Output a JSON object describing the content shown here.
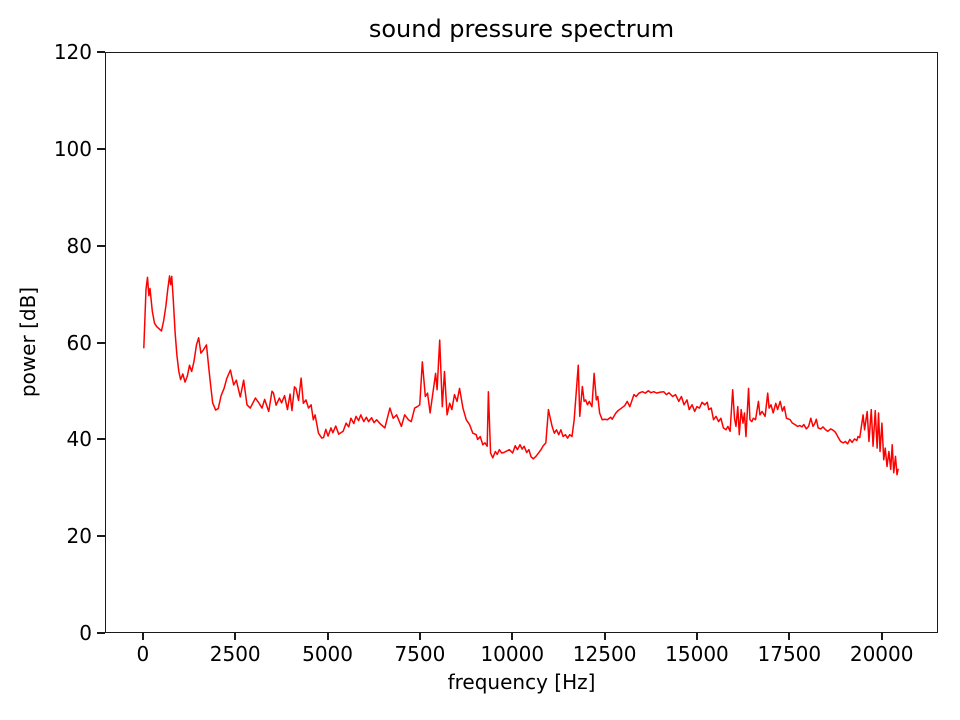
{
  "figure": {
    "background": "#ffffff",
    "text_color": "#000000",
    "spine_color": "#1a1a1a"
  },
  "chart_data": {
    "type": "line",
    "title": "sound pressure spectrum",
    "xlabel": "frequency [Hz]",
    "ylabel": "power [dB]",
    "xlim": [
      -1025,
      21525
    ],
    "ylim": [
      0,
      120
    ],
    "xticks": [
      0,
      2500,
      5000,
      7500,
      10000,
      12500,
      15000,
      17500,
      20000
    ],
    "yticks": [
      0,
      20,
      40,
      60,
      80,
      100,
      120
    ],
    "grid": false,
    "legend_position": "none",
    "series": [
      {
        "name": "sound-pressure-spectrum",
        "color": "#ff0000",
        "x": [
          0,
          60,
          100,
          140,
          170,
          230,
          290,
          350,
          420,
          480,
          540,
          600,
          650,
          700,
          730,
          760,
          800,
          850,
          900,
          950,
          1000,
          1060,
          1120,
          1180,
          1240,
          1300,
          1360,
          1430,
          1490,
          1550,
          1620,
          1700,
          1760,
          1810,
          1870,
          1950,
          2020,
          2100,
          2180,
          2250,
          2350,
          2440,
          2510,
          2620,
          2710,
          2800,
          2890,
          3030,
          3120,
          3210,
          3280,
          3390,
          3480,
          3520,
          3590,
          3680,
          3740,
          3820,
          3900,
          3970,
          4020,
          4090,
          4130,
          4200,
          4270,
          4330,
          4400,
          4470,
          4540,
          4600,
          4650,
          4740,
          4830,
          4880,
          4940,
          5000,
          5080,
          5130,
          5210,
          5290,
          5410,
          5490,
          5560,
          5620,
          5700,
          5760,
          5830,
          5890,
          5970,
          6040,
          6100,
          6180,
          6250,
          6320,
          6410,
          6540,
          6680,
          6770,
          6860,
          6990,
          7080,
          7180,
          7260,
          7350,
          7420,
          7490,
          7560,
          7640,
          7700,
          7770,
          7920,
          7960,
          8030,
          8100,
          8160,
          8230,
          8300,
          8360,
          8430,
          8500,
          8570,
          8660,
          8750,
          8840,
          8930,
          9020,
          9060,
          9130,
          9200,
          9260,
          9320,
          9350,
          9410,
          9470,
          9540,
          9590,
          9650,
          9710,
          9770,
          9850,
          9920,
          10010,
          10080,
          10140,
          10210,
          10270,
          10320,
          10390,
          10450,
          10510,
          10570,
          10640,
          10710,
          10780,
          10840,
          10910,
          10980,
          11010,
          11080,
          11140,
          11200,
          11260,
          11320,
          11380,
          11440,
          11500,
          11560,
          11620,
          11680,
          11790,
          11830,
          11900,
          11950,
          11990,
          12040,
          12090,
          12160,
          12220,
          12280,
          12320,
          12370,
          12440,
          12510,
          12580,
          12670,
          12710,
          12810,
          12870,
          12980,
          13050,
          13120,
          13190,
          13300,
          13360,
          13440,
          13530,
          13610,
          13690,
          13760,
          13840,
          13920,
          14000,
          14110,
          14180,
          14250,
          14350,
          14430,
          14520,
          14590,
          14660,
          14740,
          14800,
          14880,
          14950,
          15010,
          15080,
          15150,
          15220,
          15290,
          15330,
          15400,
          15460,
          15530,
          15600,
          15660,
          15730,
          15800,
          15850,
          15910,
          15980,
          16030,
          16070,
          16120,
          16160,
          16210,
          16260,
          16300,
          16340,
          16410,
          16450,
          16500,
          16540,
          16600,
          16680,
          16720,
          16780,
          16860,
          16930,
          16970,
          17020,
          17080,
          17150,
          17200,
          17270,
          17330,
          17380,
          17440,
          17540,
          17600,
          17670,
          17740,
          17800,
          17860,
          17910,
          17980,
          18040,
          18100,
          18160,
          18210,
          18250,
          18300,
          18370,
          18430,
          18500,
          18560,
          18640,
          18710,
          18770,
          18840,
          18910,
          18980,
          19040,
          19100,
          19160,
          19220,
          19290,
          19350,
          19380,
          19430,
          19520,
          19560,
          19630,
          19680,
          19740,
          19790,
          19850,
          19900,
          19940,
          19980,
          20030,
          20080,
          20120,
          20170,
          20220,
          20270,
          20310,
          20350,
          20400,
          20440,
          20470
        ],
        "y": [
          58.9,
          71,
          73.5,
          69.7,
          71.2,
          66.5,
          64,
          63.3,
          62.8,
          62.4,
          64.5,
          67.5,
          71,
          73.8,
          72,
          73.7,
          69,
          62,
          57.3,
          54,
          52.3,
          53.5,
          51.8,
          53,
          55.3,
          54,
          56,
          59.5,
          61,
          57.8,
          58.5,
          59.5,
          55,
          51.5,
          47.5,
          46,
          46.3,
          49,
          50.5,
          52.5,
          54.3,
          51.2,
          52.2,
          48.7,
          52.2,
          47.1,
          46.4,
          48.5,
          47.5,
          46.4,
          48.2,
          45.7,
          49.9,
          49.5,
          47,
          48.5,
          47.5,
          49,
          46.1,
          49.3,
          45.9,
          50.8,
          50.5,
          48,
          52.6,
          47.4,
          48.1,
          46.4,
          47.1,
          44,
          45,
          41.2,
          40.2,
          40.3,
          42,
          40.6,
          42.3,
          41.3,
          42.7,
          41,
          41.6,
          43.3,
          42.5,
          44.3,
          43.2,
          44.7,
          43.8,
          45,
          43.6,
          44.5,
          43.6,
          44.4,
          43.4,
          44,
          43.2,
          42.3,
          46.4,
          44.3,
          45,
          42.6,
          45,
          44,
          43.6,
          46.4,
          46.7,
          47.1,
          56,
          48.8,
          49.5,
          45.4,
          53.6,
          50.2,
          60.5,
          46.7,
          54,
          45,
          47.4,
          46.1,
          49.2,
          47.8,
          50.5,
          46.4,
          44,
          43,
          41.2,
          40.9,
          39.9,
          40.5,
          38.8,
          39.2,
          38.5,
          49.8,
          37.1,
          36.1,
          37.4,
          36.8,
          37.8,
          37.1,
          37.2,
          37.5,
          37.8,
          37.1,
          38.6,
          37.8,
          38.8,
          37.9,
          38.5,
          37.2,
          37.8,
          36.3,
          35.9,
          36.4,
          37.1,
          37.8,
          38.6,
          39.2,
          46.1,
          45,
          42.6,
          41.2,
          41.9,
          40.9,
          41.9,
          40.5,
          40.9,
          40.2,
          40.9,
          40.5,
          44,
          55.3,
          44.7,
          50.9,
          47.8,
          48.1,
          47.1,
          47.8,
          46.7,
          53.6,
          48.1,
          48.8,
          45.4,
          44,
          44.1,
          44,
          44.5,
          44.1,
          45.4,
          45.9,
          46.5,
          46.9,
          47.8,
          46.7,
          49.2,
          48.8,
          49.5,
          49.8,
          49.5,
          50,
          49.6,
          49.8,
          49.5,
          49.7,
          49.8,
          49.2,
          49.6,
          48.8,
          49.2,
          47.8,
          48.8,
          47.1,
          48.1,
          46.1,
          47.1,
          45.7,
          46.7,
          46.4,
          47.6,
          47.1,
          47.6,
          46.1,
          46.4,
          44,
          44.7,
          43.6,
          44.3,
          42.3,
          41.9,
          42.6,
          41.6,
          50.2,
          44.3,
          42.6,
          46.7,
          40.9,
          46.1,
          43.3,
          45.4,
          40.5,
          50.5,
          44,
          43.6,
          44.3,
          44,
          47.8,
          45,
          45.7,
          44.7,
          49.5,
          46.4,
          47.1,
          45.4,
          47.4,
          46.1,
          47.8,
          45.8,
          46.7,
          44.3,
          44,
          43.3,
          43,
          42.6,
          42.8,
          42.5,
          43,
          42.1,
          42.6,
          44.3,
          42.6,
          43.2,
          44.1,
          42.3,
          42.1,
          42.5,
          41.9,
          41.6,
          42.1,
          41.8,
          41.4,
          40.4,
          39.5,
          39.2,
          39.5,
          39,
          39.9,
          39.3,
          40,
          39.7,
          40.5,
          40.3,
          45,
          41.9,
          45.7,
          39.5,
          46.1,
          38.5,
          45.9,
          38.1,
          45.4,
          37.4,
          43.3,
          35.7,
          38.1,
          34.3,
          37.4,
          33.7,
          38.8,
          33,
          36.4,
          32.6,
          33.7
        ]
      }
    ]
  }
}
